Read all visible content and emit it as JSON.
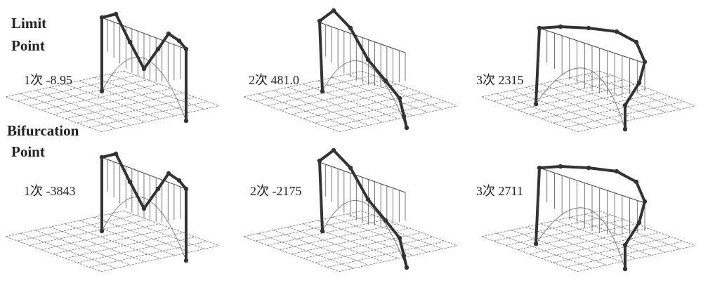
{
  "rows": [
    {
      "label": [
        "Limit",
        "Point"
      ],
      "modes": [
        "1次 -8.95",
        "2次 481.0",
        "3次 2315"
      ]
    },
    {
      "label": [
        "Bifurcation",
        "Point"
      ],
      "modes": [
        "1次 -3843",
        "2次 -2175",
        "3次 2711"
      ]
    }
  ]
}
